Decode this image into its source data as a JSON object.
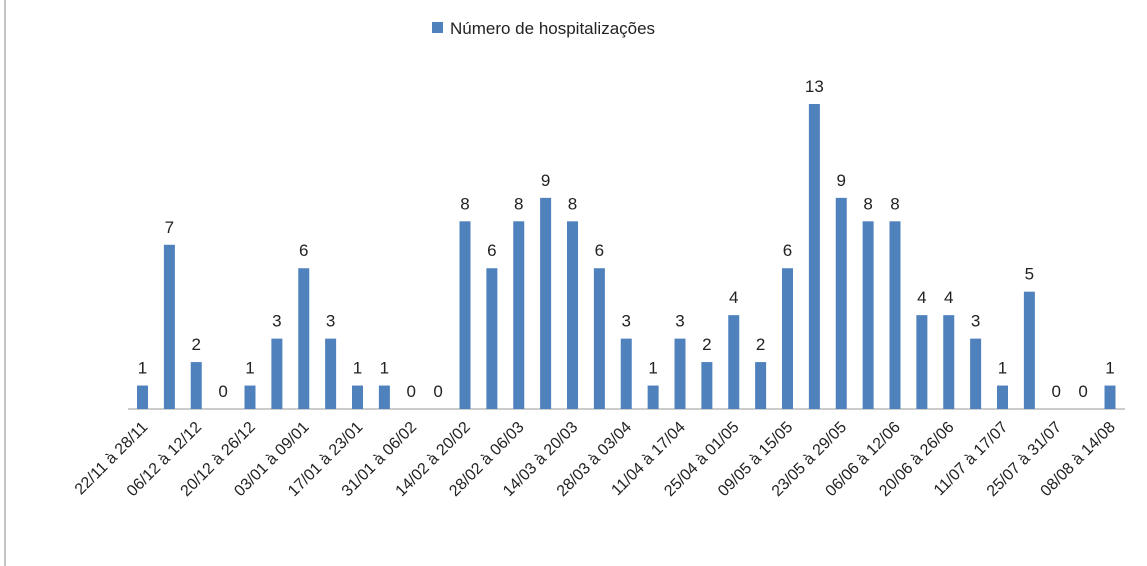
{
  "chart_data": {
    "type": "bar",
    "legend": "Número de hospitalizações",
    "color": "#4f81bd",
    "categories": [
      "22/11 à 28/11",
      null,
      "06/12 à 12/12",
      null,
      "20/12 à 26/12",
      null,
      "03/01 à 09/01",
      null,
      "17/01 à 23/01",
      null,
      "31/01 à 06/02",
      null,
      "14/02 à 20/02",
      null,
      "28/02 à 06/03",
      null,
      "14/03 à 20/03",
      null,
      "28/03 à 03/04",
      null,
      "11/04 à 17/04",
      null,
      "25/04 à 01/05",
      null,
      "09/05 à 15/05",
      null,
      "23/05 à 29/05",
      null,
      "06/06 à 12/06",
      null,
      "20/06 à 26/06",
      null,
      "11/07 à 17/07",
      null,
      "25/07 à 31/07",
      null,
      "08/08 à 14/08"
    ],
    "values": [
      1,
      7,
      2,
      0,
      1,
      3,
      6,
      3,
      1,
      1,
      0,
      0,
      8,
      6,
      8,
      9,
      8,
      6,
      3,
      1,
      3,
      2,
      4,
      2,
      6,
      13,
      9,
      8,
      8,
      4,
      4,
      3,
      1,
      5,
      0,
      0,
      1
    ],
    "ylim": [
      0,
      13
    ]
  }
}
